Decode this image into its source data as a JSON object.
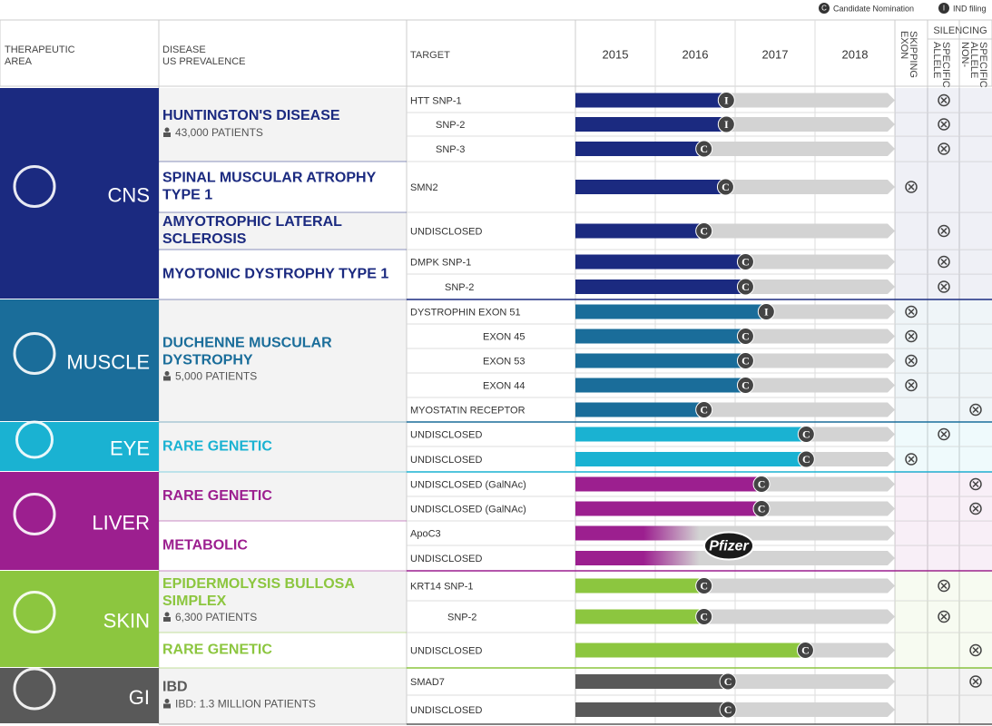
{
  "legend": [
    {
      "letter": "C",
      "label": "Candidate Nomination"
    },
    {
      "letter": "I",
      "label": "IND filing"
    }
  ],
  "header": {
    "area": [
      "THERAPEUTIC",
      "AREA"
    ],
    "disease": [
      "DISEASE",
      "US PREVALENCE"
    ],
    "target": "TARGET",
    "exon": [
      "EXON",
      "SKIPPING"
    ],
    "silencing": "SILENCING",
    "allele": [
      "ALLELE",
      "SPECIFIC"
    ],
    "nonallele": [
      "NON-",
      "ALLELE",
      "SPECIFIC"
    ]
  },
  "years": [
    2015,
    2016,
    2017,
    2018
  ],
  "xlim": [
    2015,
    2019
  ],
  "areas": [
    {
      "name": "CNS",
      "color": "#1b2a80",
      "diseases": [
        {
          "name": [
            "HUNTINGTON'S DISEASE"
          ],
          "patients": "43,000 PATIENTS",
          "targets": [
            {
              "name": "HTT SNP-1",
              "end": 2016.89,
              "marker": "I",
              "check": 1
            },
            {
              "name": "SNP-2",
              "end": 2016.89,
              "marker": "I",
              "check": 1
            },
            {
              "name": "SNP-3",
              "end": 2016.61,
              "marker": "C",
              "check": 1
            }
          ]
        },
        {
          "name": [
            "SPINAL MUSCULAR ATROPHY",
            "TYPE 1"
          ],
          "targets": [
            {
              "name": "SMN2",
              "end": 2016.88,
              "marker": "C",
              "check": 0
            }
          ]
        },
        {
          "name": [
            "AMYOTROPHIC LATERAL",
            "SCLEROSIS"
          ],
          "targets": [
            {
              "name": "UNDISCLOSED",
              "end": 2016.61,
              "marker": "C",
              "check": 1
            }
          ]
        },
        {
          "name": [
            "MYOTONIC DYSTROPHY TYPE 1"
          ],
          "targets": [
            {
              "name": "DMPK SNP-1",
              "end": 2017.13,
              "marker": "C",
              "check": 1
            },
            {
              "name": "SNP-2",
              "end": 2017.13,
              "marker": "C",
              "check": 1
            }
          ]
        }
      ]
    },
    {
      "name": "MUSCLE",
      "color": "#1a6d9a",
      "diseases": [
        {
          "name": [
            "DUCHENNE MUSCULAR",
            "DYSTROPHY"
          ],
          "patients": "5,000 PATIENTS",
          "targets": [
            {
              "name": "DYSTROPHIN EXON 51",
              "end": 2017.39,
              "marker": "I",
              "check": 0
            },
            {
              "name": "EXON 45",
              "end": 2017.13,
              "marker": "C",
              "check": 0
            },
            {
              "name": "EXON 53",
              "end": 2017.13,
              "marker": "C",
              "check": 0
            },
            {
              "name": "EXON 44",
              "end": 2017.13,
              "marker": "C",
              "check": 0
            },
            {
              "name": "MYOSTATIN RECEPTOR",
              "end": 2016.61,
              "marker": "C",
              "check": 2
            }
          ]
        }
      ]
    },
    {
      "name": "EYE",
      "color": "#1ab2d2",
      "diseases": [
        {
          "name": [
            "RARE GENETIC"
          ],
          "targets": [
            {
              "name": "UNDISCLOSED",
              "end": 2017.89,
              "marker": "C",
              "check": 1
            },
            {
              "name": "UNDISCLOSED",
              "end": 2017.89,
              "marker": "C",
              "check": 0
            }
          ]
        }
      ]
    },
    {
      "name": "LIVER",
      "color": "#9c1f8f",
      "diseases": [
        {
          "name": [
            "RARE GENETIC"
          ],
          "targets": [
            {
              "name": "UNDISCLOSED (GalNAc)",
              "end": 2017.33,
              "marker": "C",
              "check": 2
            },
            {
              "name": "UNDISCLOSED (GalNAc)",
              "end": 2017.33,
              "marker": "C",
              "check": 2
            }
          ]
        },
        {
          "name": [
            "METABOLIC"
          ],
          "logo": "Pfizer",
          "targets": [
            {
              "name": "ApoC3",
              "end": 2016.55
            },
            {
              "name": "UNDISCLOSED",
              "end": 2016.55
            }
          ]
        }
      ]
    },
    {
      "name": "SKIN",
      "color": "#8cc63f",
      "diseases": [
        {
          "name": [
            "EPIDERMOLYSIS BULLOSA",
            "SIMPLEX"
          ],
          "patients": "6,300 PATIENTS",
          "targets": [
            {
              "name": "KRT14 SNP-1",
              "end": 2016.61,
              "marker": "C",
              "check": 1
            },
            {
              "name": "SNP-2",
              "end": 2016.61,
              "marker": "C",
              "check": 1
            }
          ]
        },
        {
          "name": [
            "RARE GENETIC"
          ],
          "targets": [
            {
              "name": "UNDISCLOSED",
              "end": 2017.88,
              "marker": "C",
              "check": 2
            }
          ]
        }
      ]
    },
    {
      "name": "GI",
      "color": "#595959",
      "diseases": [
        {
          "name": [
            "IBD"
          ],
          "patients": "IBD: 1.3 MILLION PATIENTS",
          "targets": [
            {
              "name": "SMAD7",
              "end": 2016.91,
              "marker": "C",
              "check": 2
            },
            {
              "name": "UNDISCLOSED",
              "end": 2016.91,
              "marker": "C"
            }
          ]
        }
      ]
    }
  ]
}
